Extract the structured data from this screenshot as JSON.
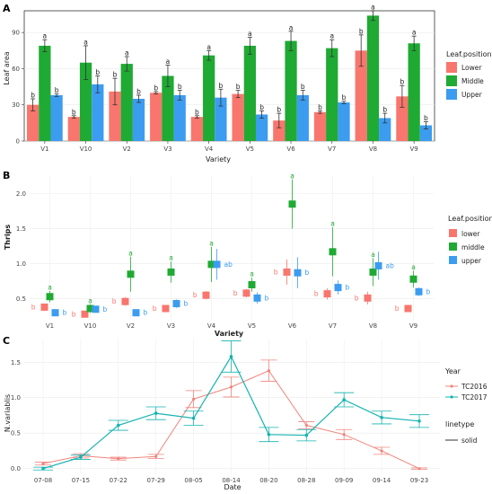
{
  "colors": {
    "lower": "#f8766d",
    "middle": "#1faa33",
    "upper": "#3b9cf0",
    "tc2016": "#f0857c",
    "tc2017": "#14b3b0",
    "panel_bg": "#ffffff",
    "grid": "#ebebeb",
    "axis": "#333333"
  },
  "chart_data": [
    {
      "panel_label": "A",
      "type": "bar",
      "xlabel": "Variety",
      "ylabel": "Leaf area",
      "ylim": [
        0,
        108
      ],
      "yticks": [
        0,
        30,
        60,
        90
      ],
      "categories": [
        "V1",
        "V10",
        "V2",
        "V3",
        "V4",
        "V5",
        "V6",
        "V7",
        "V8",
        "V9"
      ],
      "legend_title": "Leaf.position",
      "series": [
        {
          "name": "Lower",
          "values": [
            30,
            20,
            41,
            40,
            20,
            39,
            17,
            24,
            75,
            37
          ],
          "err": [
            5,
            1,
            11,
            1,
            1,
            3,
            6,
            1,
            13,
            9
          ],
          "letters": [
            "b",
            "b",
            "b",
            "b",
            "b",
            "b",
            "b",
            "b",
            "b",
            "b"
          ]
        },
        {
          "name": "Middle",
          "values": [
            79,
            65,
            64,
            54,
            71,
            79,
            83,
            77,
            104,
            81
          ],
          "err": [
            5,
            14,
            6,
            9,
            4,
            7,
            8,
            7,
            4,
            6
          ],
          "letters": [
            "a",
            "a",
            "a",
            "a",
            "a",
            "a",
            "a",
            "a",
            "a",
            "a"
          ]
        },
        {
          "name": "Upper",
          "values": [
            38,
            47,
            35,
            38,
            36,
            22,
            38,
            32,
            19,
            13
          ],
          "err": [
            1,
            7,
            3,
            4,
            7,
            3,
            4,
            1,
            4,
            3
          ],
          "letters": [
            "b",
            "b",
            "b",
            "b",
            "b",
            "b",
            "b",
            "b",
            "b",
            "b"
          ]
        }
      ]
    },
    {
      "panel_label": "B",
      "type": "scatter",
      "xlabel": "Variety",
      "ylabel": "Thrips",
      "ylim": [
        0.2,
        2.25
      ],
      "yticks": [
        0.5,
        1.0,
        1.5,
        2.0
      ],
      "ytick_labels": [
        "0.5",
        "1.0",
        "1.5",
        "2.0"
      ],
      "categories": [
        "V1",
        "V10",
        "V2",
        "V3",
        "V4",
        "V5",
        "V6",
        "V7",
        "V8",
        "V9"
      ],
      "legend_title": "Leaf.position",
      "series": [
        {
          "name": "lower",
          "values": [
            0.38,
            0.28,
            0.46,
            0.36,
            0.55,
            0.58,
            0.88,
            0.57,
            0.51,
            0.36
          ],
          "err": [
            0.05,
            0.03,
            0.06,
            0.04,
            0.06,
            0.06,
            0.18,
            0.08,
            0.09,
            0.03
          ],
          "letters": [
            "b",
            "b",
            "b",
            "b",
            "b",
            "b",
            "b",
            "b",
            "b",
            "b"
          ]
        },
        {
          "name": "middle",
          "values": [
            0.53,
            0.36,
            0.85,
            0.88,
            0.99,
            0.7,
            1.85,
            1.17,
            0.88,
            0.78
          ],
          "err": [
            0.08,
            0.06,
            0.25,
            0.15,
            0.25,
            0.1,
            0.35,
            0.35,
            0.2,
            0.12
          ],
          "letters": [
            "a",
            "a",
            "a",
            "a",
            "a",
            "a",
            "a",
            "a",
            "a",
            "a"
          ]
        },
        {
          "name": "upper",
          "values": [
            0.3,
            0.35,
            0.3,
            0.43,
            0.99,
            0.51,
            0.87,
            0.66,
            0.97,
            0.6
          ],
          "err": [
            0.04,
            0.04,
            0.05,
            0.06,
            0.22,
            0.08,
            0.22,
            0.1,
            0.2,
            0.06
          ],
          "letters": [
            "b",
            "b",
            "b",
            "b",
            "ab",
            "b",
            "b",
            "b",
            "ab",
            "b"
          ]
        }
      ]
    },
    {
      "panel_label": "C",
      "type": "line",
      "xlabel": "Date",
      "ylabel": "N.variablis",
      "ylim": [
        -0.08,
        1.82
      ],
      "yticks": [
        0,
        0.5,
        1.0,
        1.5
      ],
      "ytick_labels": [
        "0.0",
        "0.5",
        "1.0",
        "1.5"
      ],
      "categories": [
        "07-08",
        "07-15",
        "07-22",
        "07-29",
        "08-05",
        "08-14",
        "08-20",
        "08-28",
        "09-09",
        "09-14",
        "09-23"
      ],
      "legend_title": "Year",
      "legend2_title": "linetype",
      "legend2_entry": "solid",
      "series": [
        {
          "name": "TC2016",
          "values": [
            0.07,
            0.18,
            0.14,
            0.17,
            0.98,
            1.15,
            1.38,
            0.61,
            0.48,
            0.25,
            0.0
          ],
          "err": [
            0.02,
            0.03,
            0.02,
            0.03,
            0.12,
            0.14,
            0.15,
            0.05,
            0.07,
            0.05,
            0.01
          ]
        },
        {
          "name": "TC2017",
          "values": [
            0.0,
            0.16,
            0.61,
            0.78,
            0.71,
            1.58,
            0.48,
            0.47,
            0.97,
            0.72,
            0.67
          ]
        }
      ]
    }
  ]
}
